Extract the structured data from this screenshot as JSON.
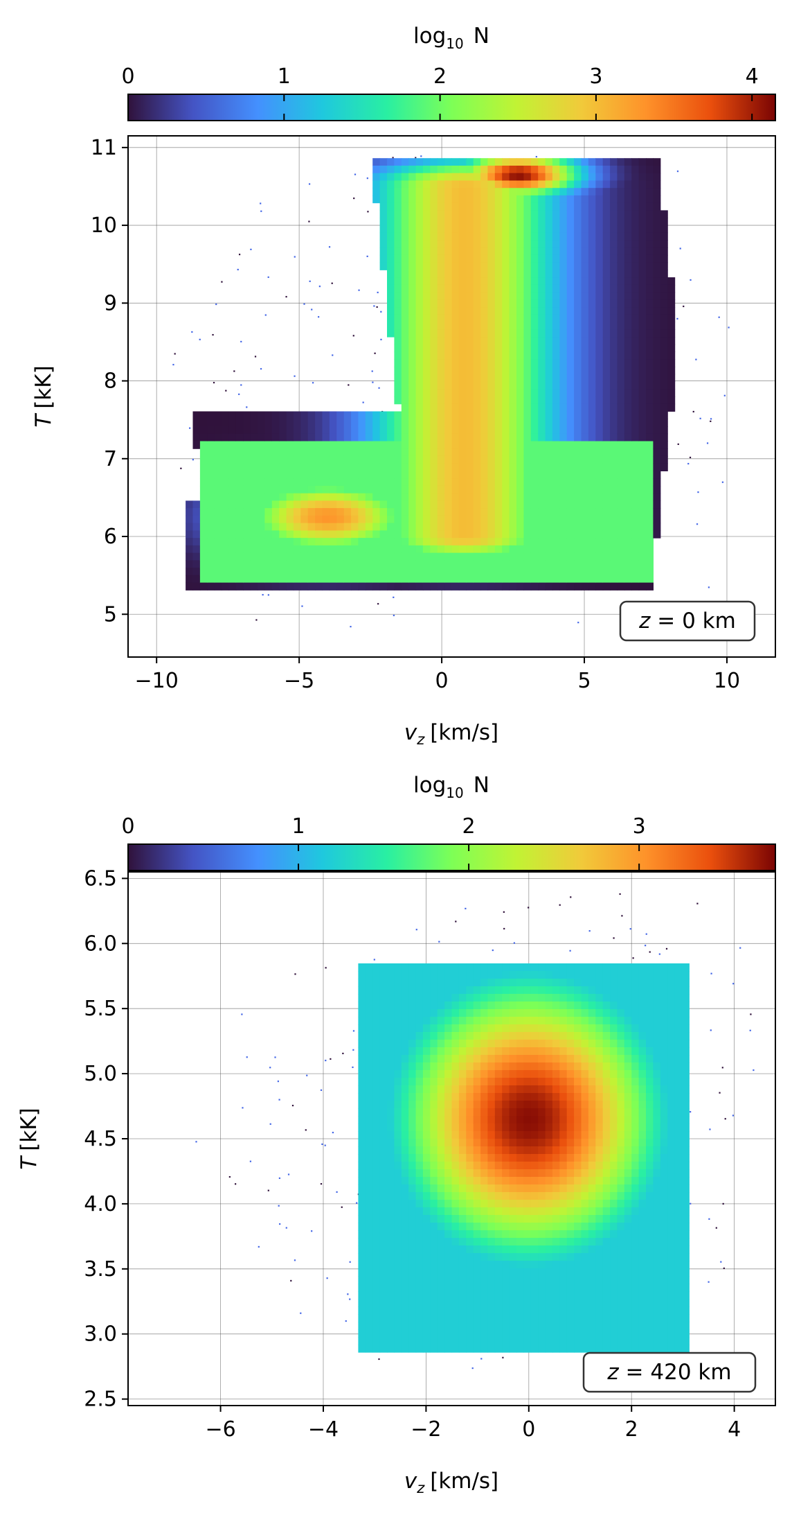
{
  "chart_data": [
    {
      "type": "heatmap",
      "subtype": "2d-histogram (hexbin)",
      "colorbar": {
        "label_main": "log",
        "label_sub": "10",
        "label_var": "N",
        "range": [
          0,
          4.15
        ],
        "ticks": [
          0,
          1,
          2,
          3,
          4
        ],
        "colormap": "turbo",
        "position": "top"
      },
      "xlabel_var": "v",
      "xlabel_sub": "z",
      "xlabel_unit": "[km/s]",
      "ylabel_var": "T",
      "ylabel_unit": "[kK]",
      "xlim": [
        -11.0,
        11.7
      ],
      "ylim": [
        4.45,
        11.15
      ],
      "xticks": [
        -10,
        -5,
        0,
        5,
        10
      ],
      "yticks": [
        5,
        6,
        7,
        8,
        9,
        10,
        11
      ],
      "grid": true,
      "annotation_var": "z",
      "annotation_value": " = 0 km",
      "annotation_position": "bottom-right",
      "distribution_features": [
        {
          "kind": "peak",
          "vz": 2.7,
          "T": 10.65,
          "log10N": 4.1
        },
        {
          "kind": "peak",
          "vz": -4.0,
          "T": 6.25,
          "log10N": 3.3
        },
        {
          "kind": "ridge",
          "vz": 0.8,
          "T": [
            6.0,
            10.5
          ],
          "log10N": 3.0
        }
      ]
    },
    {
      "type": "heatmap",
      "subtype": "2d-histogram (hexbin)",
      "colorbar": {
        "label_main": "log",
        "label_sub": "10",
        "label_var": "N",
        "range": [
          0,
          3.8
        ],
        "ticks": [
          0,
          1,
          2,
          3
        ],
        "colormap": "turbo",
        "position": "top"
      },
      "xlabel_var": "v",
      "xlabel_sub": "z",
      "xlabel_unit": "[km/s]",
      "ylabel_var": "T",
      "ylabel_unit": "[kK]",
      "xlim": [
        -7.8,
        4.8
      ],
      "ylim": [
        2.45,
        6.55
      ],
      "xticks": [
        -6,
        -4,
        -2,
        0,
        2,
        4
      ],
      "yticks": [
        "2.5",
        "3.0",
        "3.5",
        "4.0",
        "4.5",
        "5.0",
        "5.5",
        "6.0",
        "6.5"
      ],
      "grid": true,
      "annotation_var": "z",
      "annotation_value": " = 420 km",
      "annotation_position": "bottom-right",
      "distribution_features": [
        {
          "kind": "peak",
          "vz": 0.0,
          "T": 4.65,
          "log10N": 3.75
        }
      ]
    }
  ]
}
